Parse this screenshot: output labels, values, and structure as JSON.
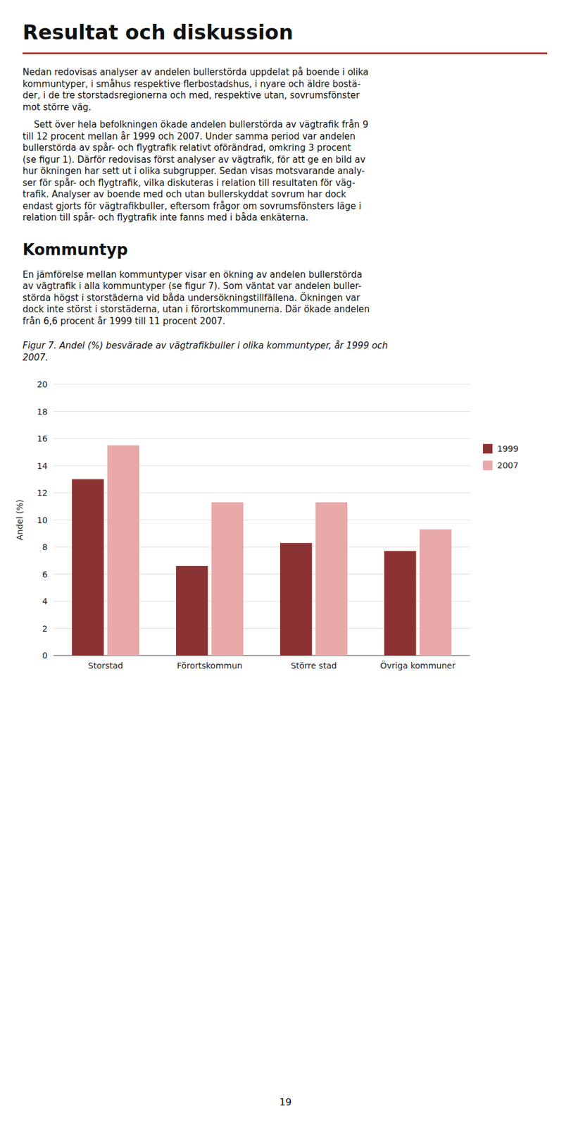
{
  "title": "Resultat och diskussion",
  "paragraphs": [
    [
      "Nedan redovisas analyser av andelen bullerstörda uppdelat på boende i olika",
      "kommuntyper, i småhus respektive flerbostadshus, i nyare och äldre bostä-",
      "der, i de tre storstadsregionerna och med, respektive utan, sovrumsfönster",
      "mot större väg."
    ],
    [
      "    Sett över hela befolkningen ökade andelen bullerstörda av vägtrafik från 9",
      "till 12 procent mellan år 1999 och 2007. Under samma period var andelen",
      "bullerstörda av spår- och flygtrafik relativt oförändrad, omkring 3 procent",
      "(se figur 1). Därför redovisas först analyser av vägtrafik, för att ge en bild av",
      "hur ökningen har sett ut i olika subgrupper. Sedan visas motsvarande analy-",
      "ser för spår- och flygtrafik, vilka diskuteras i relation till resultaten för väg-",
      "trafik. Analyser av boende med och utan bullerskyddat sovrum har dock",
      "endast gjorts för vägtrafikbuller, eftersom frågor om sovrumsfönsters läge i",
      "relation till spår- och flygtrafik inte fanns med i båda enkäterna."
    ]
  ],
  "section_title": "Kommuntyp",
  "section_paragraphs": [
    [
      "En jämförelse mellan kommuntyper visar en ökning av andelen bullerstörda",
      "av vägtrafik i alla kommuntyper (se figur 7). Som väntat var andelen buller-",
      "störda högst i storstäderna vid båda undersökningstillfällena. Ökningen var",
      "dock inte störst i storstäderna, utan i förortskommunerna. Där ökade andelen",
      "från 6,6 procent år 1999 till 11 procent 2007."
    ]
  ],
  "caption": [
    "Figur 7. Andel (%) besvärade av vägtrafikbuller i olika kommuntyper, år 1999 och",
    "2007."
  ],
  "page_number": "19",
  "chart_data": {
    "type": "bar",
    "categories": [
      "Storstad",
      "Förortskommun",
      "Större stad",
      "Övriga kommuner"
    ],
    "series": [
      {
        "name": "1999",
        "color": "#8B3232",
        "values": [
          13.0,
          6.6,
          8.3,
          7.7
        ]
      },
      {
        "name": "2007",
        "color": "#E8A8A8",
        "values": [
          15.5,
          11.3,
          11.3,
          9.3
        ]
      }
    ],
    "y_label": "Andel (%)",
    "ylim": [
      0,
      20
    ],
    "yticks": [
      0,
      2,
      4,
      6,
      8,
      10,
      12,
      14,
      16,
      18,
      20
    ],
    "grid": true,
    "legend": "right"
  }
}
